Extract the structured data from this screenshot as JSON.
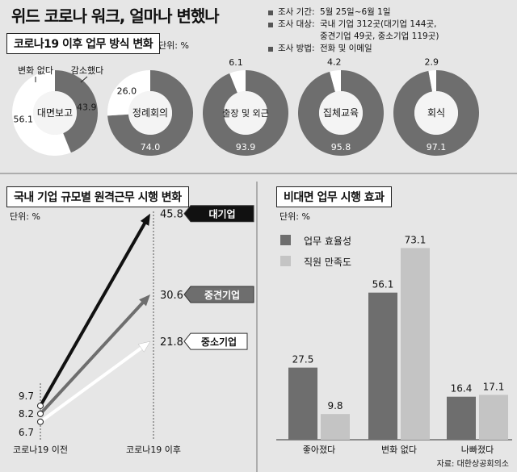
{
  "title": "위드 코로나 워크, 얼마나 변했나",
  "survey": {
    "period_label": "조사 기간:",
    "period_value": "5월 25일~6월 1일",
    "target_label": "조사 대상:",
    "target_value_1": "국내 기업 312곳(대기업 144곳,",
    "target_value_2": "중견기업 49곳, 중소기업 119곳)",
    "method_label": "조사 방법:",
    "method_value": "전화 및 이메일"
  },
  "source": "자료: 대한상공회의소",
  "section_badges": {
    "donut": "코로나19 이후 업무 방식 변화",
    "line": "국내 기업 규모별 원격근무 시행 변화",
    "bar": "비대면 업무 시행 효과"
  },
  "units": {
    "donut": "단위: %",
    "line": "단위: %",
    "bar": "단위: %"
  },
  "chart_data": [
    {
      "type": "pie",
      "title": "코로나19 이후 업무 방식 변화",
      "legend": [
        "변화 없다",
        "감소했다"
      ],
      "colors": {
        "decrease": "#6e6e6e",
        "same": "#ffffff",
        "dark": "#1a1a1a"
      },
      "items": [
        {
          "name": "대면보고",
          "decrease": 43.9,
          "same": 56.1,
          "decrease_label": "43.9",
          "same_label": "56.1"
        },
        {
          "name": "정례회의",
          "decrease": 74.0,
          "same": 26.0,
          "decrease_label": "74.0",
          "same_label": "26.0"
        },
        {
          "name": "출장 및 외근",
          "decrease": 93.9,
          "same": 6.1,
          "decrease_label": "93.9",
          "same_label": "6.1"
        },
        {
          "name": "집체교육",
          "decrease": 95.8,
          "same": 4.2,
          "decrease_label": "95.8",
          "same_label": "4.2"
        },
        {
          "name": "회식",
          "decrease": 97.1,
          "same": 2.9,
          "decrease_label": "97.1",
          "same_label": "2.9"
        }
      ]
    },
    {
      "type": "line",
      "title": "국내 기업 규모별 원격근무 시행 변화",
      "categories": [
        "코로나19 이전",
        "코로나19 이후"
      ],
      "ylim": [
        0,
        50
      ],
      "series": [
        {
          "name": "대기업",
          "values": [
            9.7,
            45.8
          ],
          "start_label": "9.7",
          "end_label": "45.8",
          "color": "#111111"
        },
        {
          "name": "중견기업",
          "values": [
            8.2,
            30.6
          ],
          "start_label": "8.2",
          "end_label": "30.6",
          "color": "#6e6e6e"
        },
        {
          "name": "중소기업",
          "values": [
            6.7,
            21.8
          ],
          "start_label": "6.7",
          "end_label": "21.8",
          "color": "#ffffff"
        }
      ]
    },
    {
      "type": "bar",
      "title": "비대면 업무 시행 효과",
      "categories": [
        "좋아졌다",
        "변화 없다",
        "나빠졌다"
      ],
      "ylim": [
        0,
        80
      ],
      "series": [
        {
          "name": "업무 효율성",
          "values": [
            27.5,
            56.1,
            16.4
          ],
          "labels": [
            "27.5",
            "56.1",
            "16.4"
          ],
          "color": "#6e6e6e"
        },
        {
          "name": "직원 만족도",
          "values": [
            9.8,
            73.1,
            17.1
          ],
          "labels": [
            "9.8",
            "73.1",
            "17.1"
          ],
          "color": "#c4c4c4"
        }
      ]
    }
  ]
}
